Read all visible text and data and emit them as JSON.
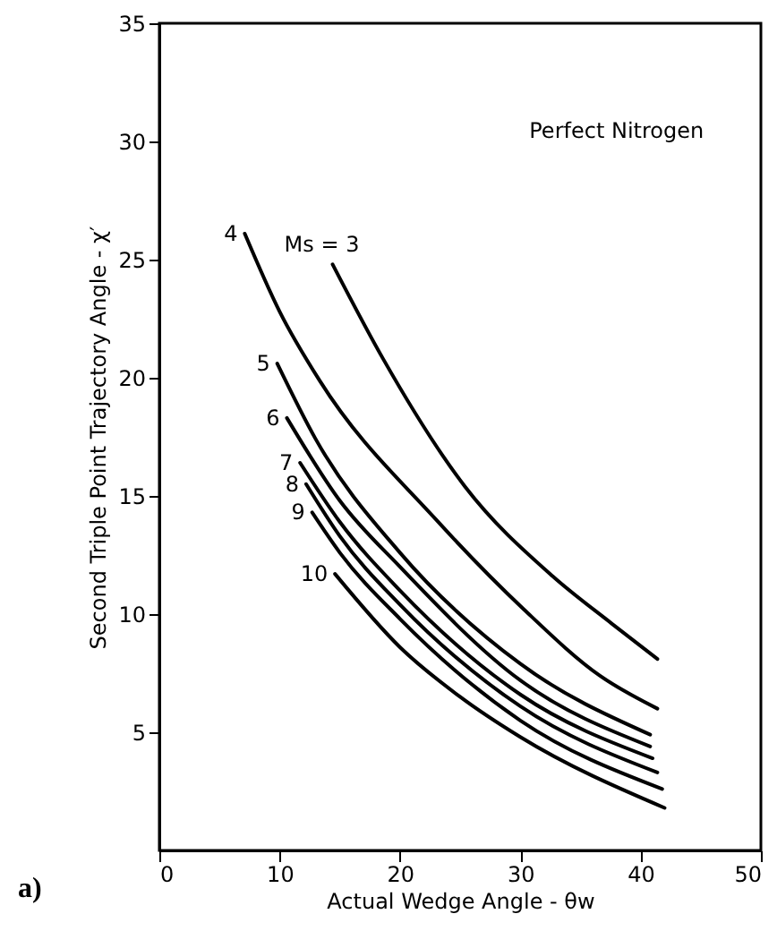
{
  "chart_data": {
    "type": "line",
    "xlabel": "Actual Wedge Angle - θw",
    "ylabel": "Second Triple Point Trajectory Angle - χ′",
    "annotations": [
      "Perfect Nitrogen",
      "a)"
    ],
    "xlim": [
      0,
      50
    ],
    "xticks": [
      0,
      10,
      20,
      30,
      40,
      50
    ],
    "ylim": [
      0,
      35
    ],
    "yticks": [
      5,
      10,
      15,
      20,
      25,
      30,
      35
    ],
    "grid": false,
    "series": [
      {
        "name": "Ms = 3",
        "color": "#000000",
        "x": [
          14.4,
          18.6,
          25.4,
          32.7,
          37.6,
          41.4
        ],
        "values": [
          24.8,
          20.8,
          15.4,
          11.6,
          9.6,
          8.1
        ]
      },
      {
        "name": "4",
        "color": "#000000",
        "x": [
          7.1,
          10,
          13.3,
          23,
          30.3,
          36.6,
          41.4
        ],
        "values": [
          26.1,
          22.8,
          19.9,
          14,
          10.2,
          7.4,
          6.0
        ]
      },
      {
        "name": "5",
        "color": "#000000",
        "x": [
          9.8,
          13,
          20,
          30,
          40.8
        ],
        "values": [
          20.6,
          17.4,
          12.6,
          7.9,
          4.9
        ]
      },
      {
        "name": "6",
        "color": "#000000",
        "x": [
          10.6,
          15,
          20,
          30,
          40.8
        ],
        "values": [
          18.3,
          14.8,
          12.0,
          7.2,
          4.4
        ]
      },
      {
        "name": "7",
        "color": "#000000",
        "x": [
          11.7,
          15,
          20,
          30,
          41
        ],
        "values": [
          16.4,
          13.9,
          11.0,
          6.6,
          3.9
        ]
      },
      {
        "name": "8",
        "color": "#000000",
        "x": [
          12.2,
          15,
          20,
          30,
          41.4
        ],
        "values": [
          15.5,
          13.3,
          10.4,
          6.1,
          3.3
        ]
      },
      {
        "name": "9",
        "color": "#000000",
        "x": [
          12.7,
          15,
          20,
          30,
          41.8
        ],
        "values": [
          14.3,
          12.6,
          9.8,
          5.5,
          2.6
        ]
      },
      {
        "name": "10",
        "color": "#000000",
        "x": [
          14.6,
          20,
          25,
          30,
          42
        ],
        "values": [
          11.7,
          8.6,
          6.5,
          4.8,
          1.8
        ]
      }
    ]
  }
}
